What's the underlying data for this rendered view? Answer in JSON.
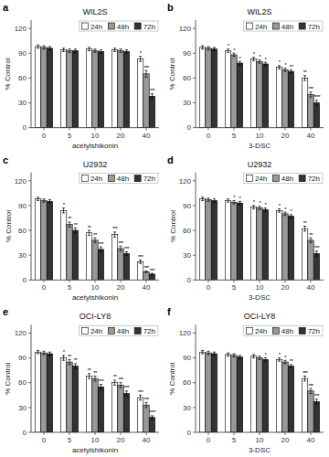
{
  "chart_data": [
    {
      "type": "bar",
      "title": "WIL2S",
      "annotations": [
        "a"
      ],
      "xlabel": "acetylshikonin",
      "ylabel": "% Control",
      "categories": [
        "0",
        "5",
        "10",
        "20",
        "40"
      ],
      "series": [
        {
          "name": "24h",
          "color": "#ffffff",
          "values": [
            98,
            94,
            95,
            94,
            83
          ],
          "errors": [
            2,
            2,
            2,
            2,
            3
          ],
          "annotations": [
            null,
            null,
            null,
            null,
            "*"
          ]
        },
        {
          "name": "48h",
          "color": "#999999",
          "values": [
            97,
            93,
            93,
            93,
            65
          ],
          "errors": [
            2,
            2,
            2,
            2,
            4
          ],
          "annotations": [
            null,
            null,
            null,
            null,
            "***"
          ]
        },
        {
          "name": "72h",
          "color": "#333333",
          "values": [
            96,
            93,
            92,
            92,
            38
          ],
          "errors": [
            2,
            2,
            2,
            2,
            3
          ],
          "annotations": [
            null,
            null,
            null,
            null,
            "***"
          ]
        }
      ],
      "ylim": [
        0,
        130
      ],
      "yticks": [
        0,
        30,
        60,
        90,
        120
      ],
      "grid": false,
      "legend": "upper right"
    },
    {
      "type": "bar",
      "title": "WIL2S",
      "annotations": [
        "b"
      ],
      "xlabel": "3-DSC",
      "ylabel": "% Control",
      "categories": [
        "0",
        "5",
        "10",
        "20",
        "40"
      ],
      "series": [
        {
          "name": "24h",
          "color": "#ffffff",
          "values": [
            97,
            93,
            83,
            73,
            60
          ],
          "errors": [
            2,
            2,
            2,
            2,
            3
          ],
          "annotations": [
            null,
            "*",
            "*",
            "*",
            "**"
          ]
        },
        {
          "name": "48h",
          "color": "#999999",
          "values": [
            96,
            88,
            80,
            70,
            40
          ],
          "errors": [
            2,
            2,
            2,
            2,
            3
          ],
          "annotations": [
            null,
            "*",
            "*",
            "*",
            "***"
          ]
        },
        {
          "name": "72h",
          "color": "#333333",
          "values": [
            95,
            78,
            77,
            68,
            30
          ],
          "errors": [
            2,
            2,
            2,
            2,
            3
          ],
          "annotations": [
            null,
            "*",
            "*",
            "**",
            "****"
          ]
        }
      ],
      "ylim": [
        0,
        130
      ],
      "yticks": [
        0,
        30,
        60,
        90,
        120
      ],
      "grid": false,
      "legend": "upper right"
    },
    {
      "type": "bar",
      "title": "U2932",
      "annotations": [
        "c"
      ],
      "xlabel": "acetylshikonin",
      "ylabel": "% Control",
      "categories": [
        "0",
        "5",
        "10",
        "20",
        "40"
      ],
      "series": [
        {
          "name": "24h",
          "color": "#ffffff",
          "values": [
            98,
            84,
            57,
            55,
            22
          ],
          "errors": [
            2,
            3,
            3,
            3,
            2
          ],
          "annotations": [
            null,
            "*",
            "**",
            "***",
            "***"
          ]
        },
        {
          "name": "48h",
          "color": "#999999",
          "values": [
            96,
            67,
            48,
            38,
            10
          ],
          "errors": [
            2,
            3,
            3,
            3,
            1
          ],
          "annotations": [
            null,
            "**",
            "**",
            "***",
            "***"
          ]
        },
        {
          "name": "72h",
          "color": "#333333",
          "values": [
            95,
            60,
            37,
            32,
            7
          ],
          "errors": [
            2,
            3,
            3,
            2,
            1
          ],
          "annotations": [
            null,
            "**",
            "***",
            "***",
            "***"
          ]
        }
      ],
      "ylim": [
        0,
        130
      ],
      "yticks": [
        0,
        30,
        60,
        90,
        120
      ],
      "grid": false,
      "legend": "upper right"
    },
    {
      "type": "bar",
      "title": "U2932",
      "annotations": [
        "d"
      ],
      "xlabel": "3-DSC",
      "ylabel": "% Control",
      "categories": [
        "0",
        "5",
        "10",
        "20",
        "40"
      ],
      "series": [
        {
          "name": "24h",
          "color": "#ffffff",
          "values": [
            98,
            96,
            88,
            84,
            62
          ],
          "errors": [
            2,
            2,
            2,
            2,
            3
          ],
          "annotations": [
            null,
            null,
            "*",
            "*",
            "**"
          ]
        },
        {
          "name": "48h",
          "color": "#999999",
          "values": [
            97,
            94,
            87,
            80,
            48
          ],
          "errors": [
            2,
            2,
            2,
            2,
            3
          ],
          "annotations": [
            null,
            "*",
            "*",
            "*",
            "**"
          ]
        },
        {
          "name": "72h",
          "color": "#333333",
          "values": [
            96,
            93,
            85,
            77,
            32
          ],
          "errors": [
            2,
            2,
            2,
            2,
            3
          ],
          "annotations": [
            null,
            "*",
            "*",
            "*",
            "***"
          ]
        }
      ],
      "ylim": [
        0,
        130
      ],
      "yticks": [
        0,
        30,
        60,
        90,
        120
      ],
      "grid": false,
      "legend": "upper right"
    },
    {
      "type": "bar",
      "title": "OCI-LY8",
      "annotations": [
        "e"
      ],
      "xlabel": "acetylshikonin",
      "ylabel": "% Control",
      "categories": [
        "0",
        "5",
        "10",
        "20",
        "40"
      ],
      "series": [
        {
          "name": "24h",
          "color": "#ffffff",
          "values": [
            97,
            90,
            68,
            60,
            42
          ],
          "errors": [
            2,
            3,
            3,
            3,
            3
          ],
          "annotations": [
            null,
            "*",
            "**",
            "**",
            "***"
          ]
        },
        {
          "name": "48h",
          "color": "#999999",
          "values": [
            96,
            85,
            65,
            57,
            33
          ],
          "errors": [
            2,
            3,
            3,
            3,
            3
          ],
          "annotations": [
            null,
            "**",
            "**",
            "***",
            "***"
          ]
        },
        {
          "name": "72h",
          "color": "#333333",
          "values": [
            95,
            80,
            55,
            47,
            18
          ],
          "errors": [
            2,
            3,
            3,
            3,
            2
          ],
          "annotations": [
            null,
            "**",
            "***",
            "***",
            "****"
          ]
        }
      ],
      "ylim": [
        0,
        130
      ],
      "yticks": [
        0,
        30,
        60,
        90,
        120
      ],
      "grid": false,
      "legend": "upper right"
    },
    {
      "type": "bar",
      "title": "OCI-LY8",
      "annotations": [
        "f"
      ],
      "xlabel": "3-DSC",
      "ylabel": "% Control",
      "categories": [
        "0",
        "5",
        "10",
        "20",
        "40"
      ],
      "series": [
        {
          "name": "24h",
          "color": "#ffffff",
          "values": [
            97,
            94,
            92,
            88,
            65
          ],
          "errors": [
            2,
            2,
            2,
            2,
            3
          ],
          "annotations": [
            null,
            null,
            null,
            "*",
            "***"
          ]
        },
        {
          "name": "48h",
          "color": "#999999",
          "values": [
            96,
            93,
            90,
            85,
            50
          ],
          "errors": [
            2,
            2,
            2,
            2,
            3
          ],
          "annotations": [
            null,
            null,
            null,
            "*",
            "***"
          ]
        },
        {
          "name": "72h",
          "color": "#333333",
          "values": [
            95,
            91,
            88,
            80,
            37
          ],
          "errors": [
            2,
            2,
            2,
            2,
            3
          ],
          "annotations": [
            null,
            null,
            "*",
            "**",
            "***"
          ]
        }
      ],
      "ylim": [
        0,
        130
      ],
      "yticks": [
        0,
        30,
        60,
        90,
        120
      ],
      "grid": false,
      "legend": "upper right"
    }
  ]
}
